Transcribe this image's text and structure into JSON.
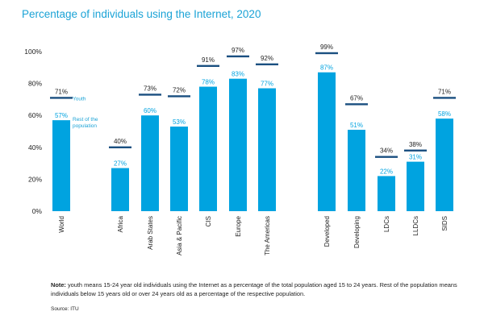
{
  "chart_title": "Percentage of individuals using the Internet, 2020",
  "note": {
    "label": "Note:",
    "text": "youth means 15-24 year old individuals using the Internet as a percentage of the total population aged 15 to 24 years. Rest of the population means individuals below 15 years old or over 24 years old as a percentage of the respective population."
  },
  "source": "Source: ITU",
  "colors": {
    "bar": "#00a3e0",
    "marker": "#1a4f80",
    "youth_label": "#1ba3d6",
    "text": "#222222"
  },
  "chart_data": {
    "type": "bar",
    "title": "Percentage of individuals using the Internet, 2020",
    "categories": [
      "World",
      "Africa",
      "Arab States",
      "Asia & Pacific",
      "CIS",
      "Europe",
      "The Americas",
      "Developed",
      "Developing",
      "LDCs",
      "LLDCs",
      "SIDS"
    ],
    "series": [
      {
        "name": "Rest of the population",
        "kind": "bar",
        "values": [
          57,
          27,
          60,
          53,
          78,
          83,
          77,
          87,
          51,
          22,
          31,
          58
        ]
      },
      {
        "name": "Youth",
        "kind": "marker",
        "values": [
          71,
          40,
          73,
          72,
          91,
          97,
          92,
          99,
          67,
          34,
          38,
          71
        ]
      }
    ],
    "value_labels": {
      "bars": [
        "57%",
        "27%",
        "60%",
        "53%",
        "78%",
        "83%",
        "77%",
        "87%",
        "51%",
        "22%",
        "31%",
        "58%"
      ],
      "markers": [
        "71%",
        "40%",
        "73%",
        "72%",
        "91%",
        "97%",
        "92%",
        "99%",
        "67%",
        "34%",
        "38%",
        "71%"
      ]
    },
    "yticks": [
      "0%",
      "20%",
      "40%",
      "60%",
      "80%",
      "100%"
    ],
    "ylim": [
      0,
      100
    ],
    "xlabel": "",
    "ylabel": "",
    "grid": false,
    "legend": "inline labels beside the World bar"
  }
}
